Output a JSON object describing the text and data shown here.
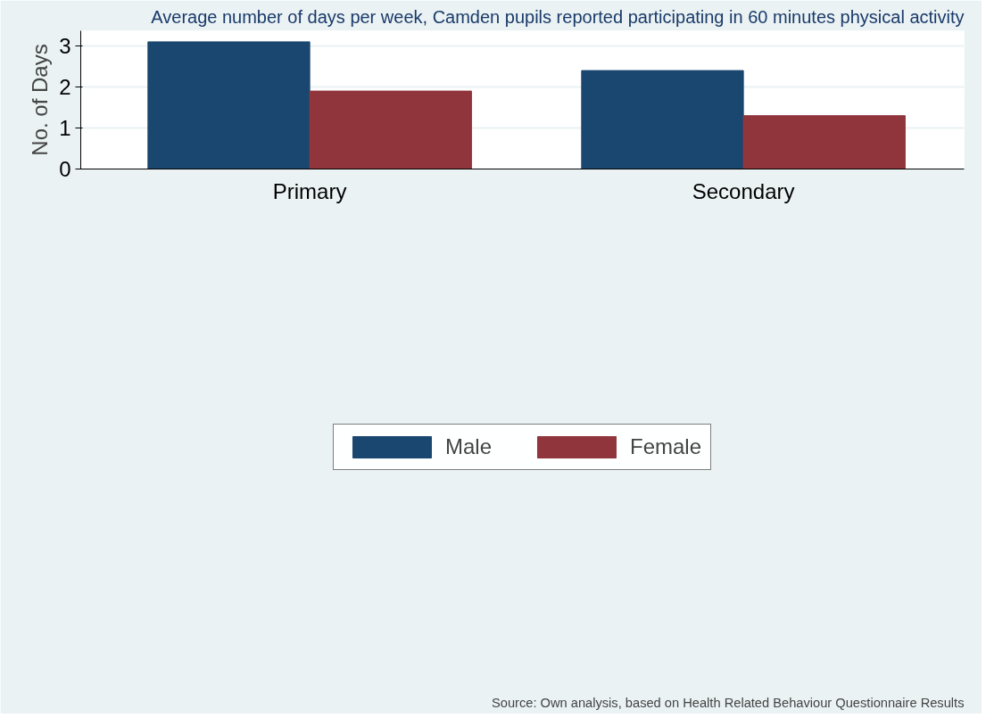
{
  "chart_data": {
    "type": "bar",
    "title": "Average number of days per week, Camden pupils reported participating in 60 minutes physical activity",
    "ylabel": "No. of Days",
    "categories": [
      "Primary",
      "Secondary"
    ],
    "series": [
      {
        "name": "Male",
        "color": "#1a476f",
        "values": [
          3.1,
          2.4
        ]
      },
      {
        "name": "Female",
        "color": "#90353b",
        "values": [
          1.9,
          1.3
        ]
      }
    ],
    "ylim": [
      0,
      3.37
    ],
    "yticks": [
      0,
      1,
      2,
      3
    ],
    "grid": "y",
    "legend": "bottom",
    "annotations": [
      "Source: Own analysis, based on Health Related Behaviour Questionnaire Results"
    ]
  }
}
